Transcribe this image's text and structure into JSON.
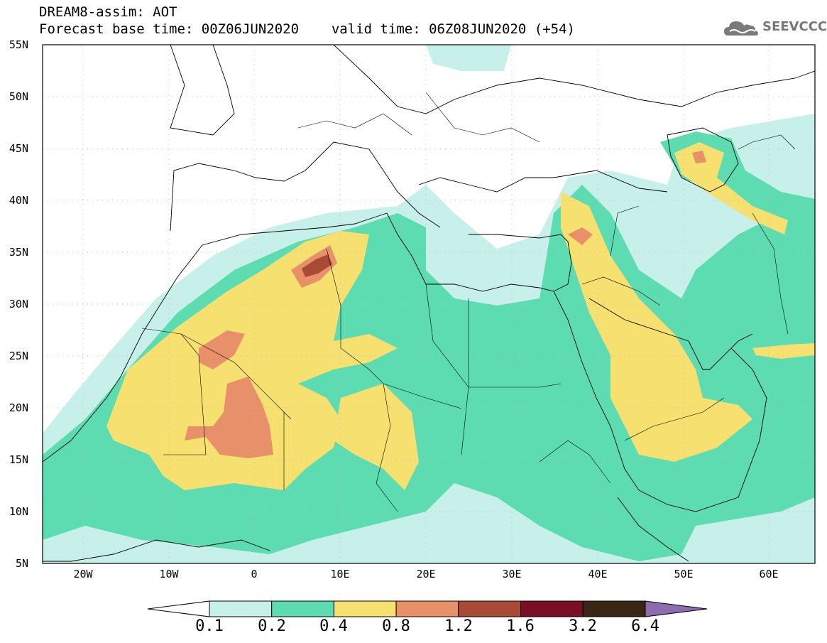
{
  "header": {
    "line1": "DREAM8-assim: AOT",
    "line2_base": "Forecast base time: 00Z06JUN2020",
    "line2_valid": "valid time: 06Z08JUN2020 (+54)"
  },
  "logo": {
    "text": "SEEVCCC",
    "icon": "cloud-icon"
  },
  "map": {
    "variable": "AOT",
    "lon_range": [
      -25,
      65
    ],
    "lat_range": [
      5,
      55
    ],
    "lat_ticks": [
      "55N",
      "50N",
      "45N",
      "40N",
      "35N",
      "30N",
      "25N",
      "20N",
      "15N",
      "10N",
      "5N"
    ],
    "lon_ticks": [
      "20W",
      "10W",
      "0",
      "10E",
      "20E",
      "30E",
      "40E",
      "50E",
      "60E"
    ]
  },
  "colorbar": {
    "labels": [
      "0.1",
      "0.2",
      "0.4",
      "0.8",
      "1.2",
      "1.6",
      "3.2",
      "6.4"
    ],
    "colors": [
      "#ffffff",
      "#c8f0ea",
      "#5cdcb0",
      "#f5e070",
      "#e8906a",
      "#a84a36",
      "#7a0e24",
      "#3a2614",
      "#8e6cb0"
    ]
  }
}
